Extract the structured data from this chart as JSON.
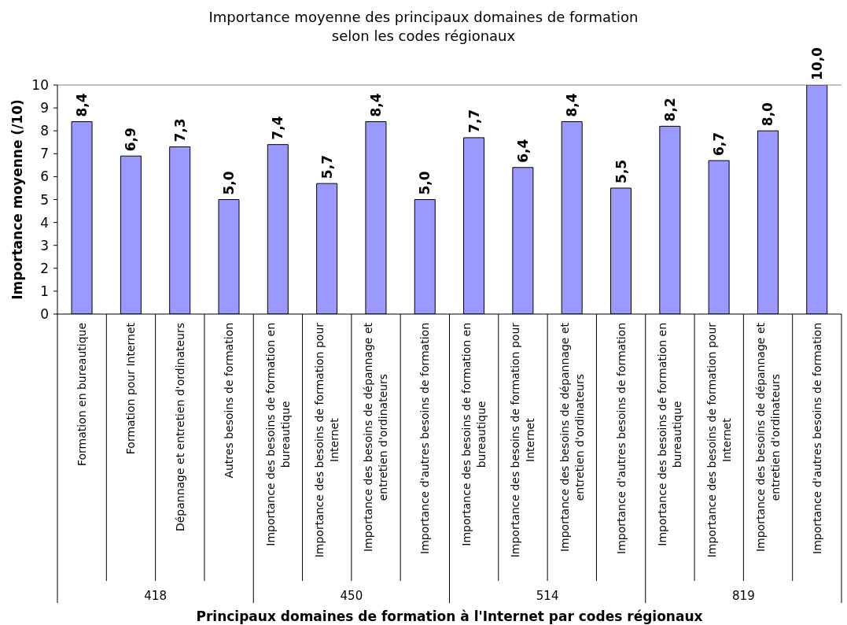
{
  "chart_data": {
    "type": "bar",
    "title": "Importance moyenne des principaux domaines de formation\nselon les codes régionaux",
    "xlabel": "Principaux domaines de formation à l'Internet par codes régionaux",
    "ylabel": "Importance moyenne (/10)",
    "categories": [
      "Formation en bureautique",
      "Formation pour Internet",
      "Dépannage et entretien d'ordinateurs",
      "Autres besoins de formation",
      "Importance des besoins de formation en bureautique",
      "Importance des besoins de formation pour Internet",
      "Importance des besoins de dépannage et entretien d'ordinateurs",
      "Importance d'autres besoins de formation",
      "Importance des besoins de formation en bureautique",
      "Importance des besoins de formation pour Internet",
      "Importance des besoins de dépannage et entretien d'ordinateurs",
      "Importance d'autres besoins de formation",
      "Importance des besoins de formation en bureautique",
      "Importance des besoins de formation pour Internet",
      "Importance des besoins de dépannage et entretien d'ordinateurs",
      "Importance d'autres besoins de formation"
    ],
    "values": [
      8.4,
      6.9,
      7.3,
      5.0,
      7.4,
      5.7,
      8.4,
      5.0,
      7.7,
      6.4,
      8.4,
      5.5,
      8.2,
      6.7,
      8.0,
      10.0
    ],
    "value_labels": [
      "8,4",
      "6,9",
      "7,3",
      "5,0",
      "7,4",
      "5,7",
      "8,4",
      "5,0",
      "7,7",
      "6,4",
      "8,4",
      "5,5",
      "8,2",
      "6,7",
      "8,0",
      "10,0"
    ],
    "color": "#9999ff",
    "ylim": [
      0,
      10
    ],
    "yticks": [
      0,
      1,
      2,
      3,
      4,
      5,
      6,
      7,
      8,
      9,
      10
    ],
    "annotations": [
      "418",
      "450",
      "514",
      "819"
    ]
  }
}
